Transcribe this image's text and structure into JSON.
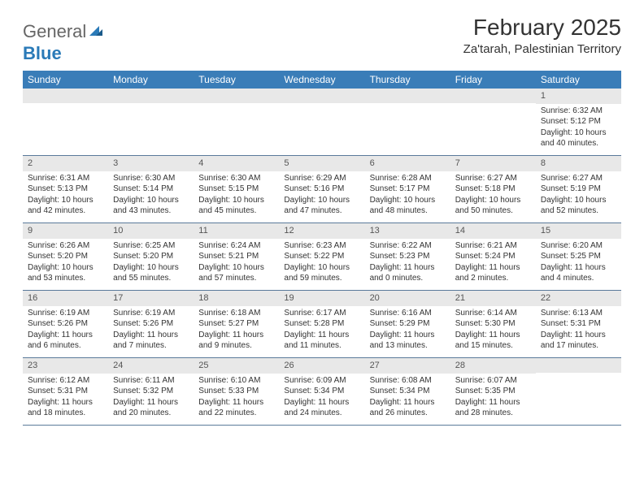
{
  "logo": {
    "part1": "General",
    "part2": "Blue"
  },
  "title": "February 2025",
  "location": "Za'tarah, Palestinian Territory",
  "colors": {
    "header_bar": "#3a7db8",
    "header_text": "#ffffff",
    "daynum_bg": "#e8e8e8",
    "row_border": "#5a7a9a",
    "text": "#333333",
    "logo_gray": "#666666",
    "logo_blue": "#2a7ab8",
    "background": "#ffffff"
  },
  "weekdays": [
    "Sunday",
    "Monday",
    "Tuesday",
    "Wednesday",
    "Thursday",
    "Friday",
    "Saturday"
  ],
  "weeks": [
    [
      {
        "day": "",
        "sunrise": "",
        "sunset": "",
        "daylight": ""
      },
      {
        "day": "",
        "sunrise": "",
        "sunset": "",
        "daylight": ""
      },
      {
        "day": "",
        "sunrise": "",
        "sunset": "",
        "daylight": ""
      },
      {
        "day": "",
        "sunrise": "",
        "sunset": "",
        "daylight": ""
      },
      {
        "day": "",
        "sunrise": "",
        "sunset": "",
        "daylight": ""
      },
      {
        "day": "",
        "sunrise": "",
        "sunset": "",
        "daylight": ""
      },
      {
        "day": "1",
        "sunrise": "Sunrise: 6:32 AM",
        "sunset": "Sunset: 5:12 PM",
        "daylight": "Daylight: 10 hours and 40 minutes."
      }
    ],
    [
      {
        "day": "2",
        "sunrise": "Sunrise: 6:31 AM",
        "sunset": "Sunset: 5:13 PM",
        "daylight": "Daylight: 10 hours and 42 minutes."
      },
      {
        "day": "3",
        "sunrise": "Sunrise: 6:30 AM",
        "sunset": "Sunset: 5:14 PM",
        "daylight": "Daylight: 10 hours and 43 minutes."
      },
      {
        "day": "4",
        "sunrise": "Sunrise: 6:30 AM",
        "sunset": "Sunset: 5:15 PM",
        "daylight": "Daylight: 10 hours and 45 minutes."
      },
      {
        "day": "5",
        "sunrise": "Sunrise: 6:29 AM",
        "sunset": "Sunset: 5:16 PM",
        "daylight": "Daylight: 10 hours and 47 minutes."
      },
      {
        "day": "6",
        "sunrise": "Sunrise: 6:28 AM",
        "sunset": "Sunset: 5:17 PM",
        "daylight": "Daylight: 10 hours and 48 minutes."
      },
      {
        "day": "7",
        "sunrise": "Sunrise: 6:27 AM",
        "sunset": "Sunset: 5:18 PM",
        "daylight": "Daylight: 10 hours and 50 minutes."
      },
      {
        "day": "8",
        "sunrise": "Sunrise: 6:27 AM",
        "sunset": "Sunset: 5:19 PM",
        "daylight": "Daylight: 10 hours and 52 minutes."
      }
    ],
    [
      {
        "day": "9",
        "sunrise": "Sunrise: 6:26 AM",
        "sunset": "Sunset: 5:20 PM",
        "daylight": "Daylight: 10 hours and 53 minutes."
      },
      {
        "day": "10",
        "sunrise": "Sunrise: 6:25 AM",
        "sunset": "Sunset: 5:20 PM",
        "daylight": "Daylight: 10 hours and 55 minutes."
      },
      {
        "day": "11",
        "sunrise": "Sunrise: 6:24 AM",
        "sunset": "Sunset: 5:21 PM",
        "daylight": "Daylight: 10 hours and 57 minutes."
      },
      {
        "day": "12",
        "sunrise": "Sunrise: 6:23 AM",
        "sunset": "Sunset: 5:22 PM",
        "daylight": "Daylight: 10 hours and 59 minutes."
      },
      {
        "day": "13",
        "sunrise": "Sunrise: 6:22 AM",
        "sunset": "Sunset: 5:23 PM",
        "daylight": "Daylight: 11 hours and 0 minutes."
      },
      {
        "day": "14",
        "sunrise": "Sunrise: 6:21 AM",
        "sunset": "Sunset: 5:24 PM",
        "daylight": "Daylight: 11 hours and 2 minutes."
      },
      {
        "day": "15",
        "sunrise": "Sunrise: 6:20 AM",
        "sunset": "Sunset: 5:25 PM",
        "daylight": "Daylight: 11 hours and 4 minutes."
      }
    ],
    [
      {
        "day": "16",
        "sunrise": "Sunrise: 6:19 AM",
        "sunset": "Sunset: 5:26 PM",
        "daylight": "Daylight: 11 hours and 6 minutes."
      },
      {
        "day": "17",
        "sunrise": "Sunrise: 6:19 AM",
        "sunset": "Sunset: 5:26 PM",
        "daylight": "Daylight: 11 hours and 7 minutes."
      },
      {
        "day": "18",
        "sunrise": "Sunrise: 6:18 AM",
        "sunset": "Sunset: 5:27 PM",
        "daylight": "Daylight: 11 hours and 9 minutes."
      },
      {
        "day": "19",
        "sunrise": "Sunrise: 6:17 AM",
        "sunset": "Sunset: 5:28 PM",
        "daylight": "Daylight: 11 hours and 11 minutes."
      },
      {
        "day": "20",
        "sunrise": "Sunrise: 6:16 AM",
        "sunset": "Sunset: 5:29 PM",
        "daylight": "Daylight: 11 hours and 13 minutes."
      },
      {
        "day": "21",
        "sunrise": "Sunrise: 6:14 AM",
        "sunset": "Sunset: 5:30 PM",
        "daylight": "Daylight: 11 hours and 15 minutes."
      },
      {
        "day": "22",
        "sunrise": "Sunrise: 6:13 AM",
        "sunset": "Sunset: 5:31 PM",
        "daylight": "Daylight: 11 hours and 17 minutes."
      }
    ],
    [
      {
        "day": "23",
        "sunrise": "Sunrise: 6:12 AM",
        "sunset": "Sunset: 5:31 PM",
        "daylight": "Daylight: 11 hours and 18 minutes."
      },
      {
        "day": "24",
        "sunrise": "Sunrise: 6:11 AM",
        "sunset": "Sunset: 5:32 PM",
        "daylight": "Daylight: 11 hours and 20 minutes."
      },
      {
        "day": "25",
        "sunrise": "Sunrise: 6:10 AM",
        "sunset": "Sunset: 5:33 PM",
        "daylight": "Daylight: 11 hours and 22 minutes."
      },
      {
        "day": "26",
        "sunrise": "Sunrise: 6:09 AM",
        "sunset": "Sunset: 5:34 PM",
        "daylight": "Daylight: 11 hours and 24 minutes."
      },
      {
        "day": "27",
        "sunrise": "Sunrise: 6:08 AM",
        "sunset": "Sunset: 5:34 PM",
        "daylight": "Daylight: 11 hours and 26 minutes."
      },
      {
        "day": "28",
        "sunrise": "Sunrise: 6:07 AM",
        "sunset": "Sunset: 5:35 PM",
        "daylight": "Daylight: 11 hours and 28 minutes."
      },
      {
        "day": "",
        "sunrise": "",
        "sunset": "",
        "daylight": ""
      }
    ]
  ]
}
